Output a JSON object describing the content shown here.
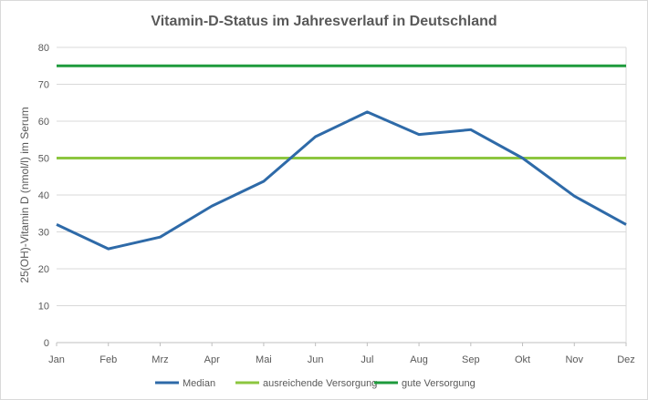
{
  "chart_data": {
    "type": "line",
    "title": "Vitamin-D-Status im Jahresverlauf in Deutschland",
    "xlabel": "",
    "ylabel": "25(OH)-Vitamin D (nmol/l)  im Serum",
    "categories": [
      "Jan",
      "Feb",
      "Mrz",
      "Apr",
      "Mai",
      "Jun",
      "Jul",
      "Aug",
      "Sep",
      "Okt",
      "Nov",
      "Dez"
    ],
    "ylim": [
      0,
      80
    ],
    "yticks": [
      0,
      10,
      20,
      30,
      40,
      50,
      60,
      70,
      80
    ],
    "grid": true,
    "legend_position": "bottom",
    "series": [
      {
        "name": "Median",
        "color": "#2e6aa8",
        "values": [
          32,
          25.4,
          28.6,
          37,
          43.7,
          55.8,
          62.5,
          56.4,
          57.7,
          50,
          39.7,
          32
        ]
      },
      {
        "name": "ausreichende Versorgung",
        "color": "#8cc63f",
        "values": [
          50,
          50,
          50,
          50,
          50,
          50,
          50,
          50,
          50,
          50,
          50,
          50
        ]
      },
      {
        "name": "gute Versorgung",
        "color": "#1e9a3c",
        "values": [
          75,
          75,
          75,
          75,
          75,
          75,
          75,
          75,
          75,
          75,
          75,
          75
        ]
      }
    ]
  }
}
